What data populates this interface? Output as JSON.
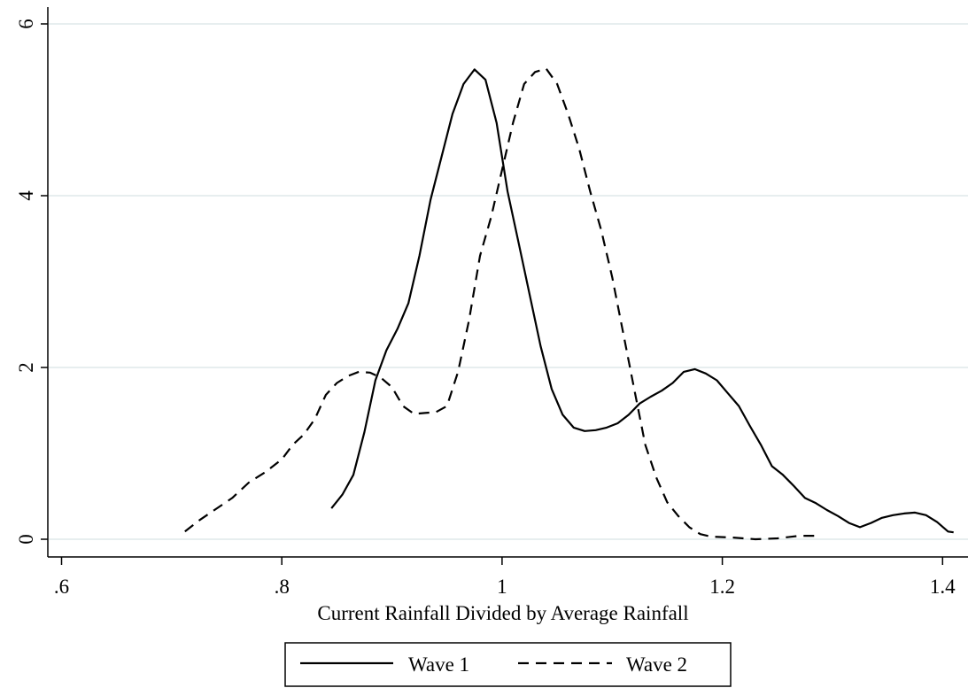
{
  "chart_data": {
    "type": "line",
    "title": "",
    "xlabel": "Current Rainfall Divided by Average Rainfall",
    "ylabel": "",
    "xlim": [
      0.6,
      1.42
    ],
    "ylim": [
      0,
      6
    ],
    "x_ticks": [
      0.6,
      0.8,
      1.0,
      1.2,
      1.4
    ],
    "x_tick_labels": [
      ".6",
      ".8",
      "1",
      "1.2",
      "1.4"
    ],
    "y_ticks": [
      0,
      2,
      4,
      6
    ],
    "y_tick_labels": [
      "0",
      "2",
      "4",
      "6"
    ],
    "grid": true,
    "legend_position": "bottom",
    "line_color": "#000000",
    "grid_color": "#dfe8ea",
    "series": [
      {
        "name": "Wave 1",
        "style": "solid",
        "points": [
          [
            0.845,
            0.36
          ],
          [
            0.855,
            0.52
          ],
          [
            0.865,
            0.75
          ],
          [
            0.875,
            1.25
          ],
          [
            0.885,
            1.85
          ],
          [
            0.895,
            2.2
          ],
          [
            0.905,
            2.45
          ],
          [
            0.915,
            2.75
          ],
          [
            0.925,
            3.3
          ],
          [
            0.935,
            3.95
          ],
          [
            0.945,
            4.45
          ],
          [
            0.955,
            4.95
          ],
          [
            0.965,
            5.3
          ],
          [
            0.975,
            5.47
          ],
          [
            0.985,
            5.35
          ],
          [
            0.995,
            4.85
          ],
          [
            1.005,
            4.05
          ],
          [
            1.015,
            3.45
          ],
          [
            1.025,
            2.85
          ],
          [
            1.035,
            2.25
          ],
          [
            1.045,
            1.75
          ],
          [
            1.055,
            1.45
          ],
          [
            1.065,
            1.3
          ],
          [
            1.075,
            1.26
          ],
          [
            1.085,
            1.27
          ],
          [
            1.095,
            1.3
          ],
          [
            1.105,
            1.35
          ],
          [
            1.115,
            1.45
          ],
          [
            1.125,
            1.58
          ],
          [
            1.135,
            1.66
          ],
          [
            1.145,
            1.73
          ],
          [
            1.155,
            1.82
          ],
          [
            1.165,
            1.95
          ],
          [
            1.175,
            1.98
          ],
          [
            1.185,
            1.93
          ],
          [
            1.195,
            1.85
          ],
          [
            1.205,
            1.7
          ],
          [
            1.215,
            1.55
          ],
          [
            1.225,
            1.32
          ],
          [
            1.235,
            1.1
          ],
          [
            1.245,
            0.85
          ],
          [
            1.255,
            0.75
          ],
          [
            1.265,
            0.62
          ],
          [
            1.275,
            0.48
          ],
          [
            1.285,
            0.42
          ],
          [
            1.295,
            0.34
          ],
          [
            1.305,
            0.27
          ],
          [
            1.315,
            0.19
          ],
          [
            1.325,
            0.14
          ],
          [
            1.335,
            0.19
          ],
          [
            1.345,
            0.25
          ],
          [
            1.355,
            0.28
          ],
          [
            1.365,
            0.3
          ],
          [
            1.375,
            0.31
          ],
          [
            1.385,
            0.28
          ],
          [
            1.395,
            0.2
          ],
          [
            1.405,
            0.09
          ],
          [
            1.41,
            0.08
          ]
        ]
      },
      {
        "name": "Wave 2",
        "style": "dashed",
        "points": [
          [
            0.712,
            0.09
          ],
          [
            0.725,
            0.22
          ],
          [
            0.74,
            0.35
          ],
          [
            0.755,
            0.48
          ],
          [
            0.77,
            0.66
          ],
          [
            0.785,
            0.78
          ],
          [
            0.8,
            0.93
          ],
          [
            0.81,
            1.1
          ],
          [
            0.82,
            1.22
          ],
          [
            0.83,
            1.4
          ],
          [
            0.84,
            1.68
          ],
          [
            0.85,
            1.82
          ],
          [
            0.86,
            1.9
          ],
          [
            0.87,
            1.95
          ],
          [
            0.88,
            1.94
          ],
          [
            0.89,
            1.88
          ],
          [
            0.9,
            1.77
          ],
          [
            0.91,
            1.55
          ],
          [
            0.92,
            1.46
          ],
          [
            0.93,
            1.47
          ],
          [
            0.94,
            1.48
          ],
          [
            0.95,
            1.55
          ],
          [
            0.96,
            1.95
          ],
          [
            0.97,
            2.55
          ],
          [
            0.98,
            3.3
          ],
          [
            0.99,
            3.75
          ],
          [
            1.0,
            4.3
          ],
          [
            1.01,
            4.85
          ],
          [
            1.02,
            5.3
          ],
          [
            1.03,
            5.44
          ],
          [
            1.04,
            5.48
          ],
          [
            1.05,
            5.3
          ],
          [
            1.06,
            4.95
          ],
          [
            1.07,
            4.55
          ],
          [
            1.08,
            4.05
          ],
          [
            1.09,
            3.6
          ],
          [
            1.1,
            3.05
          ],
          [
            1.11,
            2.4
          ],
          [
            1.12,
            1.75
          ],
          [
            1.13,
            1.1
          ],
          [
            1.14,
            0.72
          ],
          [
            1.15,
            0.43
          ],
          [
            1.16,
            0.27
          ],
          [
            1.17,
            0.14
          ],
          [
            1.18,
            0.06
          ],
          [
            1.19,
            0.03
          ],
          [
            1.21,
            0.02
          ],
          [
            1.23,
            0.0
          ],
          [
            1.25,
            0.01
          ],
          [
            1.27,
            0.04
          ],
          [
            1.285,
            0.04
          ]
        ]
      }
    ]
  }
}
